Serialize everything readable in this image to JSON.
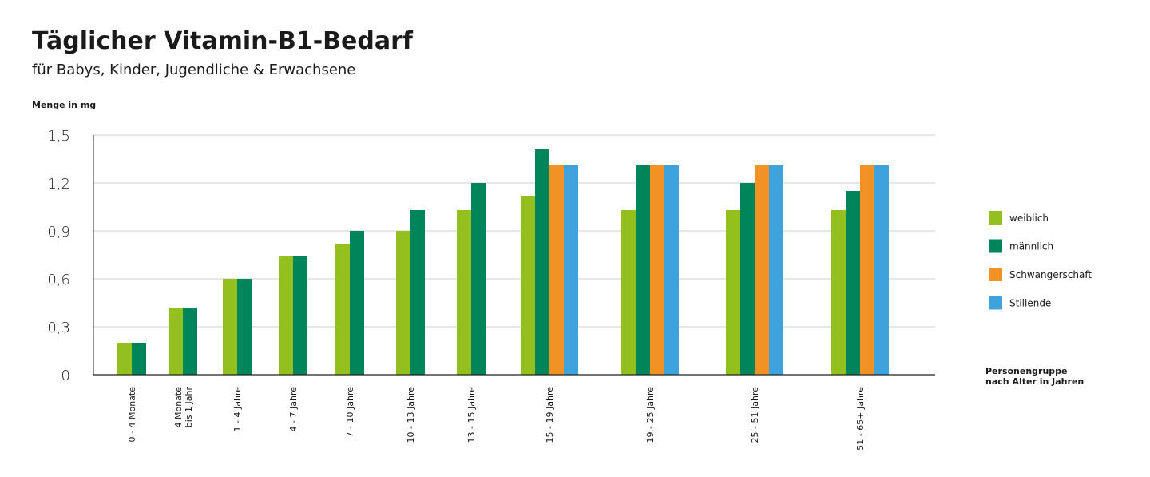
{
  "chart_data": {
    "type": "bar",
    "title": "Täglicher Vitamin-B1-Bedarf",
    "subtitle": "für Babys, Kinder, Jugendliche & Erwachsene",
    "ylabel": "Menge in mg",
    "xlabel": "Personengruppe\nnach Alter in Jahren",
    "categories": [
      "0 - 4 Monate",
      "4 Monate\nbis 1 Jahr",
      "1 - 4 Jahre",
      "4 - 7 Jahre",
      "7 - 10 Jahre",
      "10 - 13 Jahre",
      "13 - 15 Jahre",
      "15 - 19 Jahre",
      "19 - 25 Jahre",
      "25 - 51 Jahre",
      "51 - 65+ Jahre"
    ],
    "series": [
      {
        "name": "weiblich",
        "color": "#93c01f",
        "values": [
          0.2,
          0.42,
          0.6,
          0.74,
          0.82,
          0.9,
          1.03,
          1.12,
          1.03,
          1.03,
          1.03
        ]
      },
      {
        "name": "männlich",
        "color": "#00845a",
        "values": [
          0.2,
          0.42,
          0.6,
          0.74,
          0.9,
          1.03,
          1.2,
          1.41,
          1.31,
          1.2,
          1.15
        ]
      },
      {
        "name": "Schwangerschaft",
        "color": "#f39224",
        "values": [
          null,
          null,
          null,
          null,
          null,
          null,
          null,
          1.31,
          1.31,
          1.31,
          1.31
        ]
      },
      {
        "name": "Stillende",
        "color": "#3ea3dc",
        "values": [
          null,
          null,
          null,
          null,
          null,
          null,
          null,
          1.31,
          1.31,
          1.31,
          1.31
        ]
      }
    ],
    "ylim": [
      0,
      1.5
    ],
    "yticks": [
      0,
      {
        "value": 0.3,
        "label": "0,3"
      },
      {
        "value": 0.6,
        "label": "0,6"
      },
      {
        "value": 0.9,
        "label": "0,9"
      },
      {
        "value": 1.2,
        "label": "1,2"
      },
      {
        "value": 1.5,
        "label": "1,5"
      }
    ],
    "grid": true,
    "legend": "right"
  }
}
